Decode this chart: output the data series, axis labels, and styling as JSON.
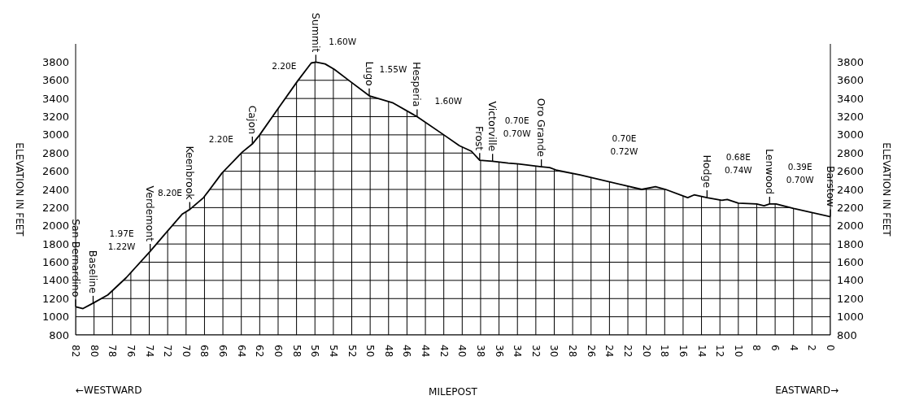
{
  "chart_data": {
    "type": "line",
    "xlabel": "MILEPOST",
    "ylabel": "ELEVATION IN FEET",
    "y2label": "ELEVATION IN FEET",
    "xlim": [
      82,
      0
    ],
    "xticks": [
      82,
      80,
      78,
      76,
      74,
      72,
      70,
      68,
      66,
      64,
      62,
      60,
      58,
      56,
      54,
      52,
      50,
      48,
      46,
      44,
      42,
      40,
      38,
      36,
      34,
      32,
      30,
      28,
      26,
      24,
      22,
      20,
      18,
      16,
      14,
      12,
      10,
      8,
      6,
      4,
      2,
      0
    ],
    "ylim": [
      800,
      4000
    ],
    "yticks": [
      800,
      1000,
      1200,
      1400,
      1600,
      1800,
      2000,
      2200,
      2400,
      2600,
      2800,
      3000,
      3200,
      3400,
      3600,
      3800
    ],
    "y2lim": [
      800,
      4000
    ],
    "y2ticks": [
      800,
      1000,
      1200,
      1400,
      1600,
      1800,
      2000,
      2200,
      2400,
      2600,
      2800,
      3000,
      3200,
      3400,
      3600,
      3800
    ],
    "grid": true,
    "marker": "none",
    "line_style": "solid",
    "series": [
      {
        "color": "#000000",
        "x": [
          82,
          81.2,
          80.1,
          78.5,
          76.5,
          73.9,
          72.2,
          70.4,
          69.6,
          68.1,
          66.1,
          63.9,
          62.8,
          62,
          60,
          57.9,
          56.4,
          55.9,
          54.9,
          53.9,
          52.2,
          50.1,
          47.5,
          44.9,
          42,
          40.3,
          39,
          38.1,
          36.7,
          35,
          33.9,
          31.4,
          30.5,
          29.7,
          27.2,
          20.5,
          19,
          17.9,
          15.5,
          14.8,
          13.4,
          11.8,
          11.2,
          10,
          8,
          7.2,
          6.6,
          5.9,
          4,
          0
        ],
        "values": [
          1110,
          1090,
          1150,
          1240,
          1430,
          1720,
          1920,
          2130,
          2180,
          2310,
          2580,
          2810,
          2900,
          3000,
          3290,
          3590,
          3790,
          3800,
          3780,
          3720,
          3590,
          3430,
          3350,
          3200,
          3000,
          2880,
          2820,
          2720,
          2710,
          2690,
          2680,
          2650,
          2640,
          2610,
          2560,
          2400,
          2430,
          2400,
          2310,
          2340,
          2310,
          2280,
          2290,
          2250,
          2240,
          2220,
          2240,
          2240,
          2190,
          2100
        ]
      }
    ],
    "annotations": [
      {
        "text": "San Bernardino",
        "x": 82,
        "y": 1110
      },
      {
        "text": "Baseline",
        "x": 80.1,
        "y": 1150
      },
      "1.97E\n1.22W",
      {
        "text": "Verdemont",
        "x": 73.9,
        "y": 1720
      },
      "8.20E",
      {
        "text": "Keenbrook",
        "x": 69.6,
        "y": 2180
      },
      "2.20E",
      {
        "text": "Cajon",
        "x": 62.8,
        "y": 2900
      },
      "2.20E",
      {
        "text": "Summit",
        "x": 55.9,
        "y": 3800
      },
      "1.60W",
      {
        "text": "Lugo",
        "x": 50.1,
        "y": 3430
      },
      "1.55W",
      {
        "text": "Hesperia",
        "x": 44.9,
        "y": 3200
      },
      "1.60W",
      {
        "text": "Frost",
        "x": 38.1,
        "y": 2720
      },
      {
        "text": "Victorville",
        "x": 36.7,
        "y": 2710
      },
      "0.70E\n0.70W",
      {
        "text": "Oro Grande",
        "x": 31.4,
        "y": 2650
      },
      "0.70E\n0.72W",
      {
        "text": "Hodge",
        "x": 13.4,
        "y": 2310
      },
      "0.68E\n0.74W",
      {
        "text": "Lenwood",
        "x": 6.6,
        "y": 2240
      },
      "0.39E\n0.70W",
      {
        "text": "Barstow",
        "x": 0,
        "y": 2100
      },
      "←WESTWARD",
      "EASTWARD→"
    ]
  }
}
